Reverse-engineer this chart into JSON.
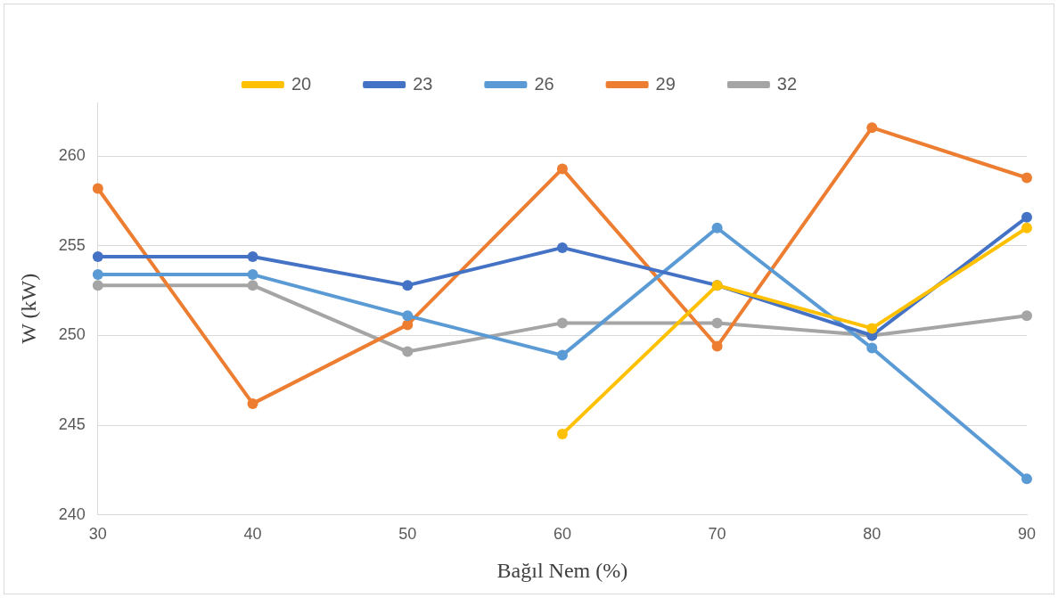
{
  "chart_data": {
    "type": "line",
    "xlabel": "Bağıl Nem (%)",
    "ylabel": "W (kW)",
    "categories": [
      "30",
      "40",
      "50",
      "60",
      "70",
      "80",
      "90"
    ],
    "series": [
      {
        "name": "20",
        "color": "#ffc000",
        "values": [
          null,
          null,
          null,
          244.5,
          252.8,
          250.4,
          256.0
        ]
      },
      {
        "name": "23",
        "color": "#4472c4",
        "values": [
          254.4,
          254.4,
          252.8,
          254.9,
          252.8,
          250.0,
          256.6
        ]
      },
      {
        "name": "26",
        "color": "#5b9bd5",
        "values": [
          253.4,
          253.4,
          251.1,
          248.9,
          256.0,
          249.3,
          242.0
        ]
      },
      {
        "name": "29",
        "color": "#ed7d31",
        "values": [
          258.2,
          246.2,
          250.6,
          259.3,
          249.4,
          261.6,
          258.8
        ]
      },
      {
        "name": "32",
        "color": "#a5a5a5",
        "values": [
          252.8,
          252.8,
          249.1,
          250.7,
          250.7,
          250.0,
          251.1
        ]
      }
    ],
    "ylim": [
      240,
      263
    ],
    "yticks": [
      240,
      245,
      250,
      255,
      260
    ],
    "grid": "y",
    "legend": "top",
    "marker": "circle",
    "line_style": "solid"
  }
}
